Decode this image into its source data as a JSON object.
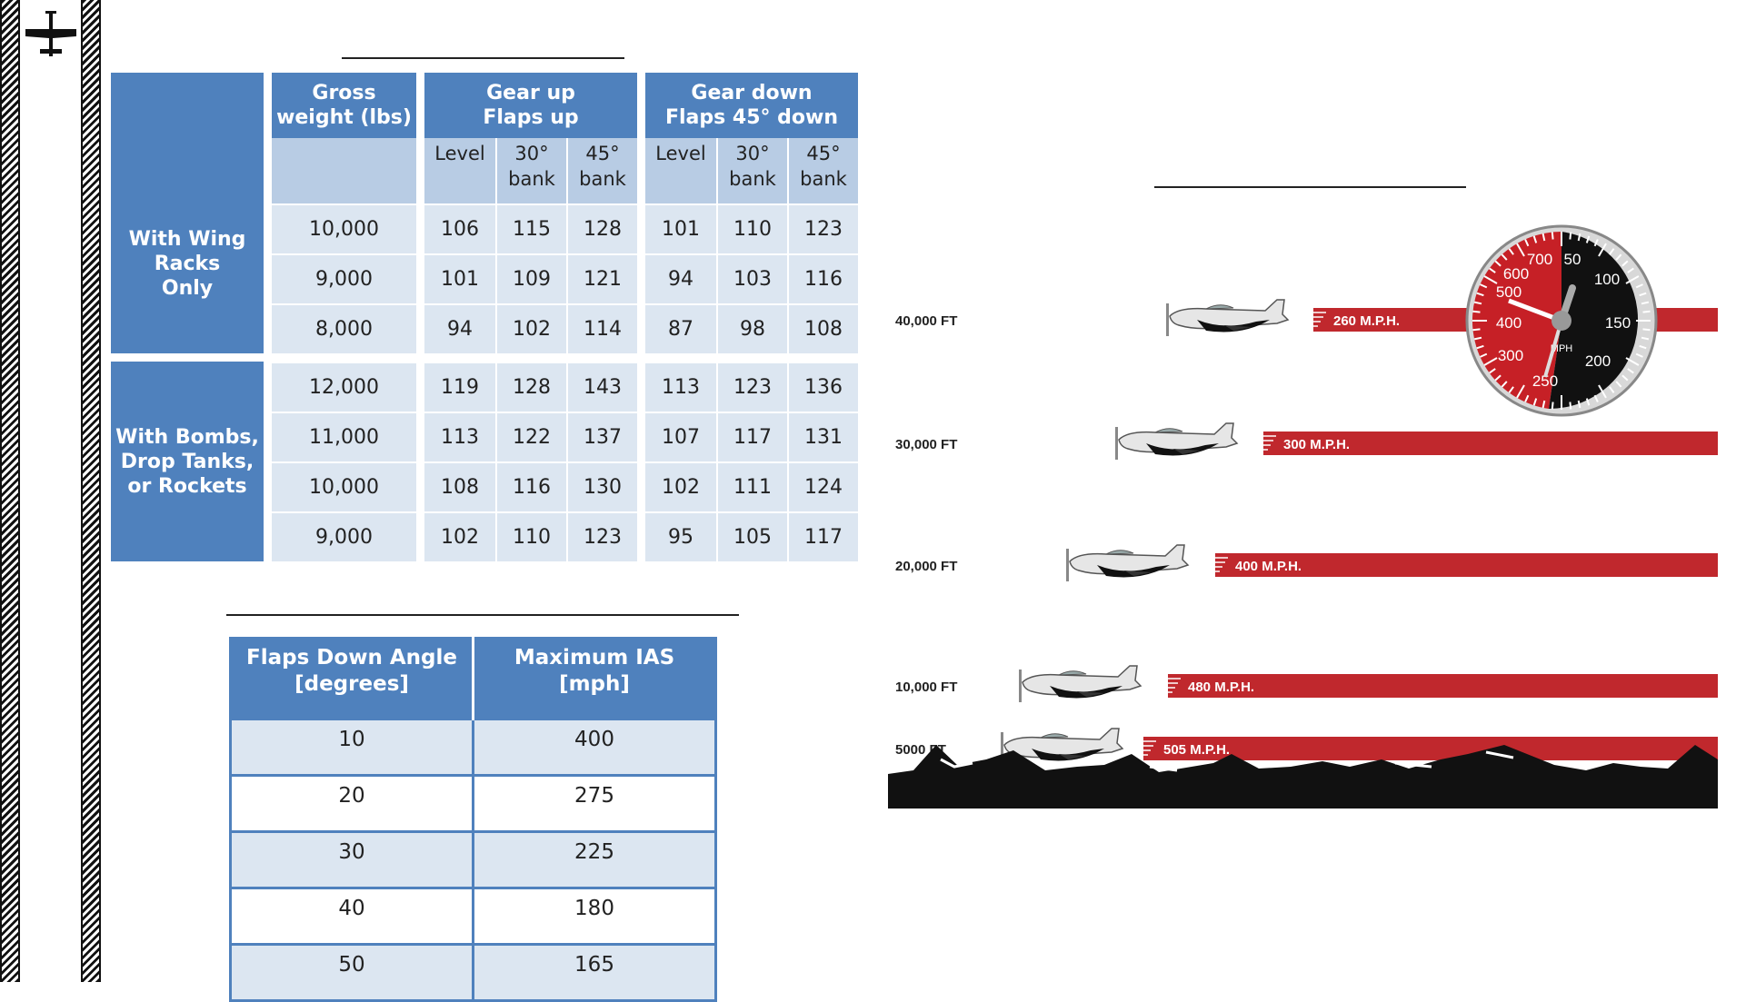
{
  "stall_table": {
    "headers": {
      "category": "",
      "gross_weight": [
        "Gross",
        "weight (lbs)"
      ],
      "gear_up": [
        "Gear up",
        "Flaps up"
      ],
      "gear_down": [
        "Gear down",
        "Flaps 45° down"
      ]
    },
    "subheaders": [
      [
        "Level",
        ""
      ],
      [
        "30°",
        "bank"
      ],
      [
        "45°",
        "bank"
      ],
      [
        "Level",
        ""
      ],
      [
        "30°",
        "bank"
      ],
      [
        "45°",
        "bank"
      ]
    ],
    "groups": [
      {
        "label": [
          "With Wing",
          "Racks",
          "Only"
        ],
        "rows": [
          {
            "weight": "10,000",
            "values": [
              "106",
              "115",
              "128",
              "101",
              "110",
              "123"
            ]
          },
          {
            "weight": "9,000",
            "values": [
              "101",
              "109",
              "121",
              "94",
              "103",
              "116"
            ]
          },
          {
            "weight": "8,000",
            "values": [
              "94",
              "102",
              "114",
              "87",
              "98",
              "108"
            ]
          }
        ]
      },
      {
        "label": [
          "With Bombs,",
          "Drop Tanks,",
          "or Rockets"
        ],
        "rows": [
          {
            "weight": "12,000",
            "values": [
              "119",
              "128",
              "143",
              "113",
              "123",
              "136"
            ]
          },
          {
            "weight": "11,000",
            "values": [
              "113",
              "122",
              "137",
              "107",
              "117",
              "131"
            ]
          },
          {
            "weight": "10,000",
            "values": [
              "108",
              "116",
              "130",
              "102",
              "111",
              "124"
            ]
          },
          {
            "weight": "9,000",
            "values": [
              "102",
              "110",
              "123",
              "95",
              "105",
              "117"
            ]
          }
        ]
      }
    ]
  },
  "flaps_table": {
    "headers": [
      [
        "Flaps Down Angle",
        "[degrees]"
      ],
      [
        "Maximum IAS",
        "[mph]"
      ]
    ],
    "rows": [
      [
        "10",
        "400"
      ],
      [
        "20",
        "275"
      ],
      [
        "30",
        "225"
      ],
      [
        "40",
        "180"
      ],
      [
        "50",
        "165"
      ]
    ]
  },
  "altitude_chart": {
    "colors": {
      "bar": "#c0282d",
      "gauge_red": "#c62026",
      "gauge_black": "#111111"
    },
    "rows": [
      {
        "altitude": "40,000 FT",
        "speed": "260 M.P.H."
      },
      {
        "altitude": "30,000 FT",
        "speed": "300 M.P.H."
      },
      {
        "altitude": "20,000 FT",
        "speed": "400 M.P.H."
      },
      {
        "altitude": "10,000 FT",
        "speed": "480 M.P.H."
      },
      {
        "altitude": "5000 FT",
        "speed": "505 M.P.H."
      }
    ],
    "gauge": {
      "unit": "MPH",
      "labels": [
        "50",
        "100",
        "150",
        "200",
        "250",
        "300",
        "400",
        "500",
        "600",
        "700"
      ]
    }
  }
}
